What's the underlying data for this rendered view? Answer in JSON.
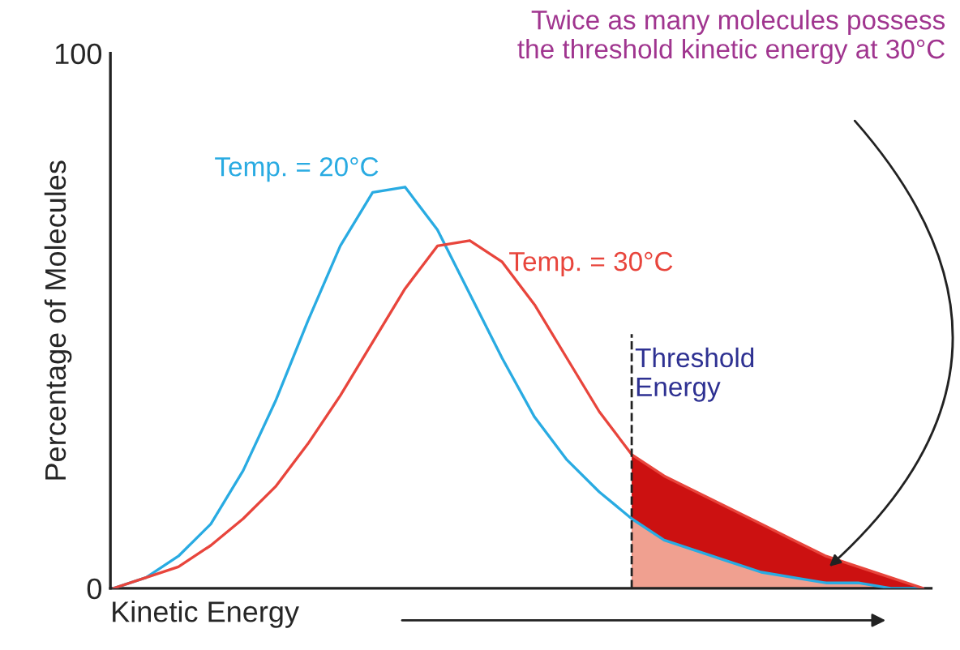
{
  "chart_data": {
    "type": "line",
    "xlabel": "Kinetic Energy",
    "ylabel": "Percentage of Molecules",
    "categories": [
      null,
      null,
      null,
      null,
      null,
      null,
      null,
      null,
      null,
      null,
      null,
      null,
      null,
      null,
      null,
      null,
      null,
      null,
      null,
      null,
      null,
      null,
      null,
      null,
      null,
      null
    ],
    "series": [
      {
        "name": "Temp. = 20°C",
        "color": "#29abe2",
        "values": [
          0,
          2,
          6,
          12,
          22,
          35,
          50,
          64,
          74,
          75,
          67,
          55,
          43,
          32,
          24,
          18,
          13,
          9,
          7,
          5,
          3,
          2,
          1,
          1,
          0,
          0
        ]
      },
      {
        "name": "Temp. = 30°C",
        "color": "#e8453c",
        "values": [
          0,
          2,
          4,
          8,
          13,
          19,
          27,
          36,
          46,
          56,
          64,
          65,
          61,
          53,
          43,
          33,
          25,
          21,
          18,
          15,
          12,
          9,
          6,
          4,
          2,
          0
        ]
      },
      {
        "type": "area",
        "color": "#cc1111",
        "values": [
          null,
          null,
          null,
          null,
          null,
          null,
          null,
          null,
          null,
          null,
          null,
          null,
          null,
          null,
          null,
          null,
          25,
          21,
          18,
          15,
          12,
          9,
          6,
          4,
          2,
          0
        ]
      },
      {
        "type": "area",
        "color": "#f0a090",
        "values": [
          null,
          null,
          null,
          null,
          null,
          null,
          null,
          null,
          null,
          null,
          null,
          null,
          null,
          null,
          null,
          null,
          13,
          9,
          7,
          5,
          3,
          2,
          1,
          1,
          0,
          0
        ]
      }
    ],
    "ylim": [
      0,
      100
    ],
    "yticks": [
      0,
      100
    ],
    "grid": false,
    "legend": false,
    "marker": "none",
    "line_style": "solid",
    "annotations": [
      "Twice as many molecules possess\nthe threshold kinetic energy at 30°C",
      "Threshold\nEnergy"
    ]
  }
}
